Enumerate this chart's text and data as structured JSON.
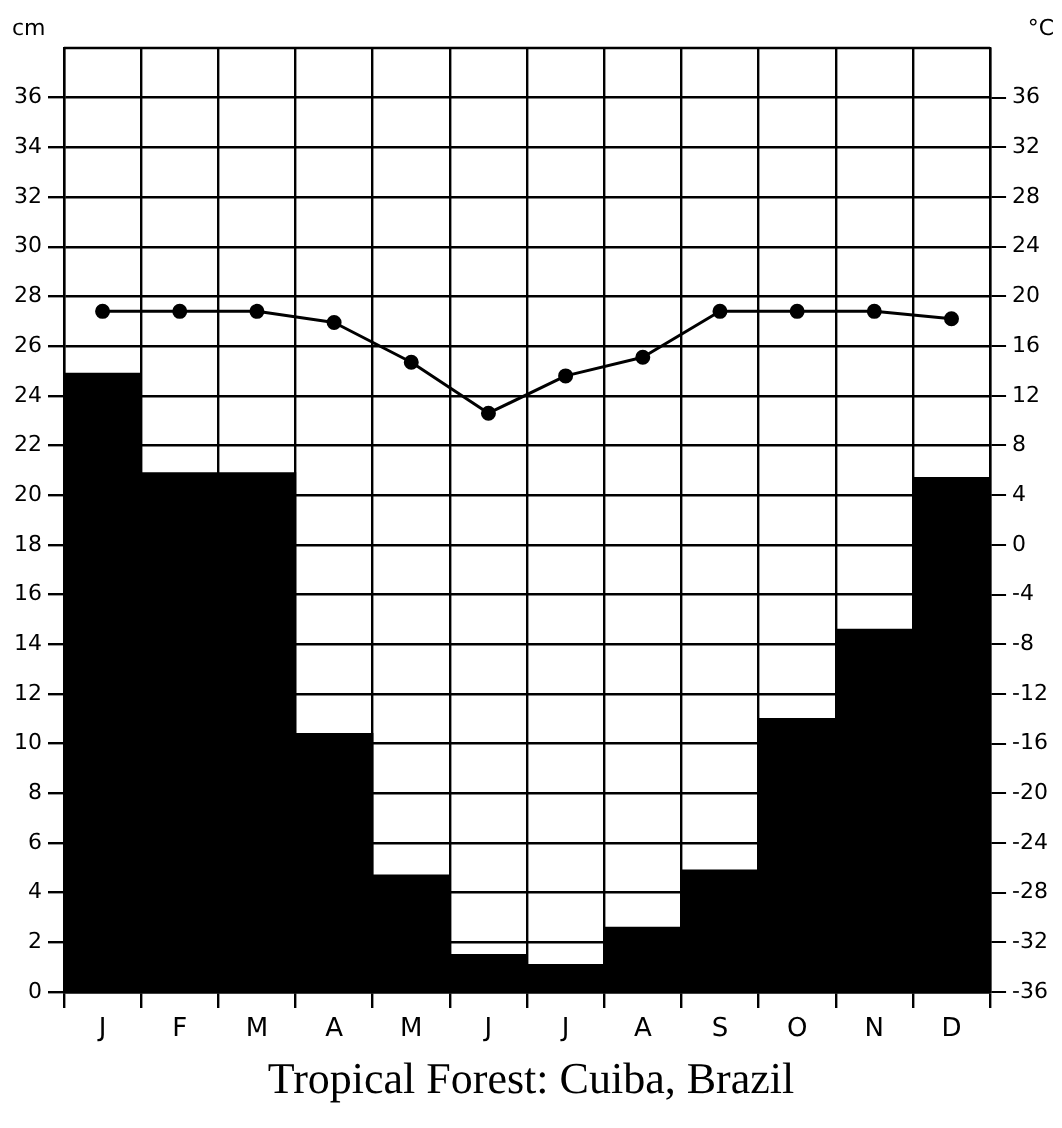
{
  "chart_data": {
    "type": "bar",
    "title": "Tropical Forest: Cuiba, Brazil",
    "ylabel": "cm",
    "y2label": "°C",
    "categories": [
      "J",
      "F",
      "M",
      "A",
      "M",
      "J",
      "J",
      "A",
      "S",
      "O",
      "N",
      "D"
    ],
    "series": [
      {
        "color": "#000000",
        "values": [
          24.9,
          20.9,
          20.9,
          10.4,
          4.7,
          1.5,
          1.1,
          2.6,
          4.9,
          11.0,
          14.6,
          20.7
        ]
      },
      {
        "type": "line",
        "axis": "y2",
        "color": "#000000",
        "marker": "circle",
        "values": [
          18.8,
          18.8,
          18.8,
          17.9,
          14.7,
          10.6,
          13.6,
          15.1,
          18.8,
          18.8,
          18.8,
          18.2
        ]
      }
    ],
    "ylim": [
      0,
      38
    ],
    "yticks": [
      0,
      2,
      4,
      6,
      8,
      10,
      12,
      14,
      16,
      18,
      20,
      22,
      24,
      26,
      28,
      30,
      32,
      34,
      36
    ],
    "y2lim": [
      -36,
      40
    ],
    "y2ticks": [
      -36,
      -32,
      -28,
      -24,
      -20,
      -16,
      -12,
      -8,
      -4,
      0,
      4,
      8,
      12,
      16,
      20,
      24,
      28,
      32,
      36
    ],
    "grid": true,
    "legend": false
  }
}
